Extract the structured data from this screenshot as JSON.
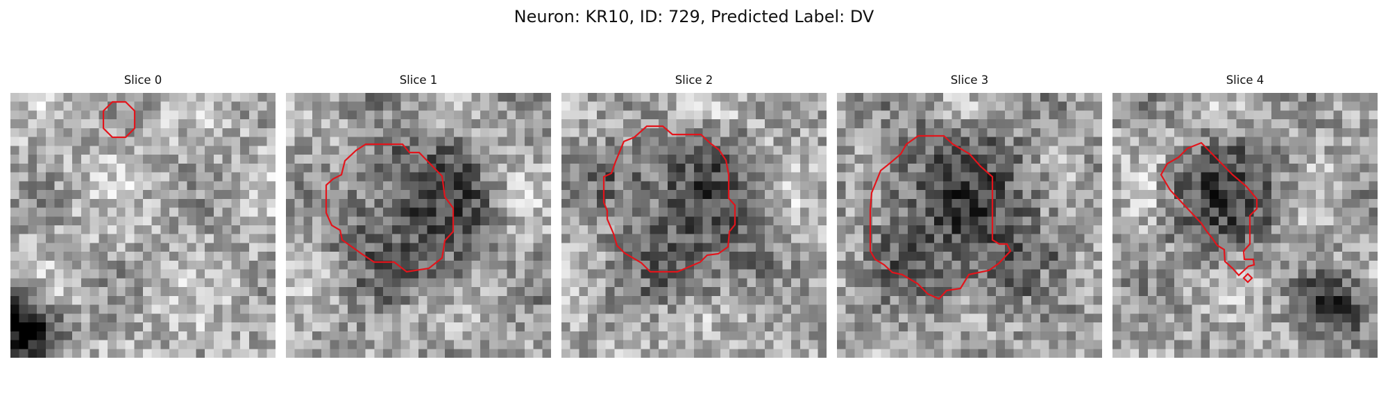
{
  "figure": {
    "title": "Neuron: KR10, ID: 729, Predicted Label: DV",
    "contour_color": "#e3141b"
  },
  "panels": [
    {
      "title": "Slice 0"
    },
    {
      "title": "Slice 1"
    },
    {
      "title": "Slice 2"
    },
    {
      "title": "Slice 3"
    },
    {
      "title": "Slice 4"
    }
  ]
}
